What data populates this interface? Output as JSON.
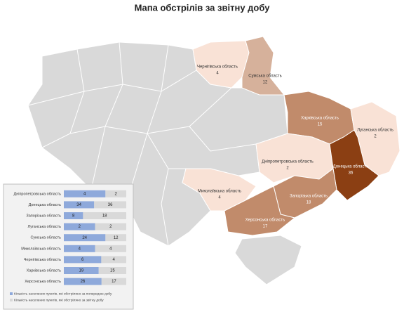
{
  "title": "Мапа обстрілів за звітну добу",
  "map": {
    "regions": [
      {
        "name": "Чернігівська область",
        "value": 4,
        "color": "#f9e2d6"
      },
      {
        "name": "Сумська область",
        "value": 12,
        "color": "#d6b19b"
      },
      {
        "name": "Харківська область",
        "value": 15,
        "color": "#c18b6b"
      },
      {
        "name": "Луганська область",
        "value": 2,
        "color": "#f9e2d6"
      },
      {
        "name": "Дніпропетровська область",
        "value": 2,
        "color": "#f9e2d6"
      },
      {
        "name": "Донецька область",
        "value": 36,
        "color": "#8b3f13"
      },
      {
        "name": "Миколаївська область",
        "value": 4,
        "color": "#f9e2d6"
      },
      {
        "name": "Запорізька область",
        "value": 18,
        "color": "#c18b6b"
      },
      {
        "name": "Херсонська область",
        "value": 17,
        "color": "#c18b6b"
      }
    ]
  },
  "chart_data": {
    "type": "bar-stacked-horizontal",
    "categories": [
      "Дніпропетровська область",
      "Донецька область",
      "Запорізька область",
      "Луганська область",
      "Сумська область",
      "Миколаївська область",
      "Чернігівська область",
      "Харківська область",
      "Херсонська область"
    ],
    "series": [
      {
        "name": "Кількість населених пунктів, які обстріляно за попередню добу",
        "color": "#8ea9db",
        "values": [
          4,
          34,
          8,
          2,
          24,
          4,
          6,
          19,
          26
        ]
      },
      {
        "name": "Кількість населених пунктів, які обстріляно за звітну добу",
        "color": "#d9d9d9",
        "values": [
          2,
          36,
          18,
          2,
          12,
          4,
          4,
          15,
          17
        ]
      }
    ]
  }
}
